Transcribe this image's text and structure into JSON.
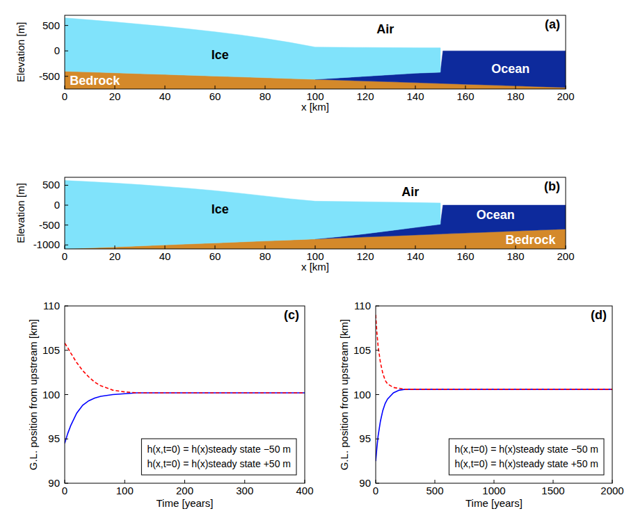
{
  "chart_data": [
    {
      "type": "area",
      "label": "(a)",
      "x_label": "x [km]",
      "y_label": "Elevation [m]",
      "x": [
        0,
        10,
        20,
        30,
        40,
        50,
        60,
        70,
        80,
        90,
        100,
        110,
        120,
        130,
        140,
        150,
        151,
        160,
        170,
        180,
        190,
        200
      ],
      "xlim": [
        0,
        200
      ],
      "xticks": [
        0,
        20,
        40,
        60,
        80,
        100,
        120,
        140,
        160,
        180,
        200
      ],
      "ylim": [
        -750,
        700
      ],
      "yticks": [
        -500,
        0,
        500
      ],
      "series": [
        {
          "color": "#d4892a",
          "upper": [
            -400,
            -416,
            -432,
            -448,
            -464,
            -480,
            -496,
            -512,
            -528,
            -544,
            -560,
            -576,
            -592,
            -608,
            -624,
            -640,
            -642,
            -656,
            -672,
            -688,
            -704,
            -720
          ]
        },
        {
          "color": "#0d2a9c",
          "lower": [
            null,
            null,
            null,
            null,
            null,
            null,
            null,
            null,
            null,
            null,
            -560,
            -576,
            -592,
            -608,
            -624,
            -640,
            -642,
            -656,
            -672,
            -688,
            -704,
            -720
          ],
          "upper": [
            null,
            null,
            null,
            null,
            null,
            null,
            null,
            null,
            null,
            null,
            -560,
            -530,
            -500,
            -470,
            -440,
            -420,
            0,
            0,
            0,
            0,
            0,
            0
          ]
        },
        {
          "color": "#80e3fb",
          "lower": [
            -400,
            -416,
            -432,
            -448,
            -464,
            -480,
            -496,
            -512,
            -528,
            -544,
            -560,
            -530,
            -500,
            -470,
            -440,
            -420,
            null,
            null,
            null,
            null,
            null,
            null
          ],
          "upper": [
            650,
            610,
            570,
            525,
            480,
            430,
            375,
            315,
            245,
            165,
            75,
            70,
            68,
            65,
            62,
            60,
            null,
            null,
            null,
            null,
            null,
            null
          ]
        }
      ],
      "annotations": [
        {
          "text": "Ice",
          "x": 62,
          "y": -80,
          "color": "#000000"
        },
        {
          "text": "Air",
          "x": 128,
          "y": 430,
          "color": "#000000"
        },
        {
          "text": "Ocean",
          "x": 178,
          "y": -360,
          "color": "#ffffff"
        },
        {
          "text": "Bedrock",
          "x": 12,
          "y": -580,
          "color": "#ffffff"
        }
      ]
    },
    {
      "type": "area",
      "label": "(b)",
      "x_label": "x [km]",
      "y_label": "Elevation [m]",
      "x": [
        0,
        10,
        20,
        30,
        40,
        50,
        60,
        70,
        80,
        90,
        100,
        110,
        120,
        130,
        140,
        150,
        151,
        160,
        170,
        180,
        190,
        200
      ],
      "xlim": [
        0,
        200
      ],
      "xticks": [
        0,
        20,
        40,
        60,
        80,
        100,
        120,
        140,
        160,
        180,
        200
      ],
      "ylim": [
        -1100,
        700
      ],
      "yticks": [
        -1000,
        -500,
        0,
        500
      ],
      "series": [
        {
          "color": "#d4892a",
          "upper": [
            -1100,
            -1075,
            -1050,
            -1025,
            -1000,
            -975,
            -950,
            -925,
            -900,
            -875,
            -850,
            -825,
            -800,
            -775,
            -750,
            -725,
            -722,
            -700,
            -675,
            -650,
            -625,
            -600
          ]
        },
        {
          "color": "#0d2a9c",
          "lower": [
            null,
            null,
            null,
            null,
            null,
            null,
            null,
            null,
            null,
            null,
            -850,
            -825,
            -800,
            -775,
            -750,
            -725,
            -722,
            -700,
            -675,
            -650,
            -625,
            -600
          ],
          "upper": [
            null,
            null,
            null,
            null,
            null,
            null,
            null,
            null,
            null,
            null,
            -850,
            -790,
            -720,
            -640,
            -560,
            -480,
            0,
            0,
            0,
            0,
            0,
            0
          ]
        },
        {
          "color": "#80e3fb",
          "lower": [
            -1100,
            -1075,
            -1050,
            -1025,
            -1000,
            -975,
            -950,
            -925,
            -900,
            -875,
            -850,
            -790,
            -720,
            -640,
            -560,
            -480,
            null,
            null,
            null,
            null,
            null,
            null
          ],
          "upper": [
            620,
            590,
            555,
            515,
            470,
            420,
            365,
            300,
            230,
            160,
            100,
            92,
            85,
            75,
            65,
            55,
            null,
            null,
            null,
            null,
            null,
            null
          ]
        }
      ],
      "annotations": [
        {
          "text": "Ice",
          "x": 62,
          "y": -100,
          "color": "#000000"
        },
        {
          "text": "Air",
          "x": 138,
          "y": 330,
          "color": "#000000"
        },
        {
          "text": "Ocean",
          "x": 172,
          "y": -250,
          "color": "#ffffff"
        },
        {
          "text": "Bedrock",
          "x": 186,
          "y": -870,
          "color": "#ffffff"
        }
      ]
    },
    {
      "type": "line",
      "label": "(c)",
      "x_label": "Time [years]",
      "y_label": "G.L. position from upstream [km]",
      "x": [
        0,
        5,
        10,
        20,
        30,
        40,
        50,
        60,
        80,
        100,
        120,
        150,
        200,
        250,
        300,
        350,
        400
      ],
      "xlim": [
        0,
        400
      ],
      "xticks": [
        0,
        100,
        200,
        300,
        400
      ],
      "ylim": [
        90,
        110
      ],
      "yticks": [
        90,
        95,
        100,
        105,
        110
      ],
      "legend": "lower right",
      "series": [
        {
          "name": "h(x,t=0) = h(x)steady state −50 m",
          "color": "#0000ff",
          "line_style": "solid",
          "values": [
            94.5,
            95.6,
            96.5,
            97.9,
            98.8,
            99.3,
            99.6,
            99.8,
            100.0,
            100.1,
            100.2,
            100.2,
            100.2,
            100.2,
            100.2,
            100.2,
            100.2
          ]
        },
        {
          "name": "h(x,t=0) = h(x)steady state +50 m",
          "color": "#ff0000",
          "line_style": "dashed",
          "values": [
            105.8,
            105.3,
            104.7,
            103.6,
            102.7,
            102.0,
            101.4,
            101.0,
            100.5,
            100.3,
            100.2,
            100.2,
            100.2,
            100.2,
            100.2,
            100.2,
            100.2
          ]
        }
      ]
    },
    {
      "type": "line",
      "label": "(d)",
      "x_label": "Time [years]",
      "y_label": "G.L. position from upstream [km]",
      "x": [
        0,
        10,
        20,
        40,
        60,
        80,
        100,
        150,
        200,
        250,
        300,
        400,
        500,
        750,
        1000,
        1250,
        1500,
        1750,
        2000
      ],
      "xlim": [
        0,
        2000
      ],
      "xticks": [
        0,
        500,
        1000,
        1500,
        2000
      ],
      "ylim": [
        90,
        110
      ],
      "yticks": [
        90,
        95,
        100,
        105,
        110
      ],
      "legend": "lower right",
      "series": [
        {
          "name": "h(x,t=0) = h(x)steady state −50 m",
          "color": "#0000ff",
          "line_style": "solid",
          "values": [
            92.5,
            94.0,
            95.3,
            97.0,
            98.2,
            99.0,
            99.5,
            100.2,
            100.5,
            100.6,
            100.6,
            100.6,
            100.6,
            100.6,
            100.6,
            100.6,
            100.6,
            100.6,
            100.6
          ]
        },
        {
          "name": "h(x,t=0) = h(x)steady state +50 m",
          "color": "#ff0000",
          "line_style": "dashed",
          "values": [
            109.0,
            107.0,
            105.5,
            103.6,
            102.4,
            101.6,
            101.2,
            100.8,
            100.7,
            100.6,
            100.6,
            100.6,
            100.6,
            100.6,
            100.6,
            100.6,
            100.6,
            100.6,
            100.6
          ]
        }
      ]
    }
  ]
}
